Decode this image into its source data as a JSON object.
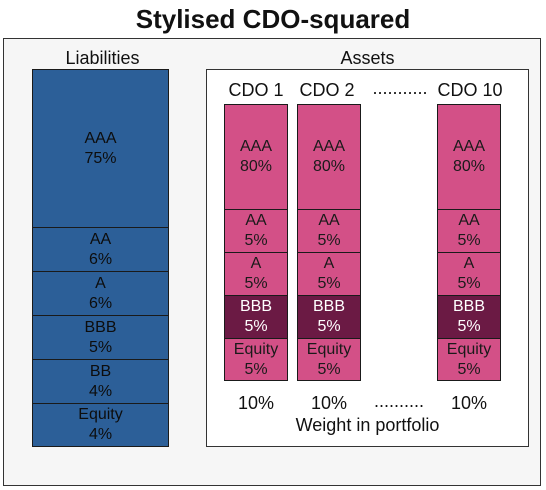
{
  "title": "Stylised CDO-squared",
  "liabilities": {
    "heading": "Liabilities",
    "tranches": [
      {
        "name": "AAA",
        "pct": "75%"
      },
      {
        "name": "AA",
        "pct": "6%"
      },
      {
        "name": "A",
        "pct": "6%"
      },
      {
        "name": "BBB",
        "pct": "5%"
      },
      {
        "name": "BB",
        "pct": "4%"
      },
      {
        "name": "Equity",
        "pct": "4%"
      }
    ]
  },
  "assets": {
    "heading": "Assets",
    "cdos": [
      {
        "label": "CDO 1",
        "weight": "10%"
      },
      {
        "label": "CDO 2",
        "weight": "10%"
      },
      {
        "label": "CDO 10",
        "weight": "10%"
      }
    ],
    "header_dots": "...........",
    "weight_dots": "..........",
    "tranches": [
      {
        "name": "AAA",
        "pct": "80%"
      },
      {
        "name": "AA",
        "pct": "5%"
      },
      {
        "name": "A",
        "pct": "5%"
      },
      {
        "name": "BBB",
        "pct": "5%"
      },
      {
        "name": "Equity",
        "pct": "5%"
      }
    ],
    "weight_caption": "Weight in portfolio"
  },
  "colors": {
    "liability": "#2c5f98",
    "asset": "#d35087",
    "asset_bbb": "#6b1a44"
  }
}
